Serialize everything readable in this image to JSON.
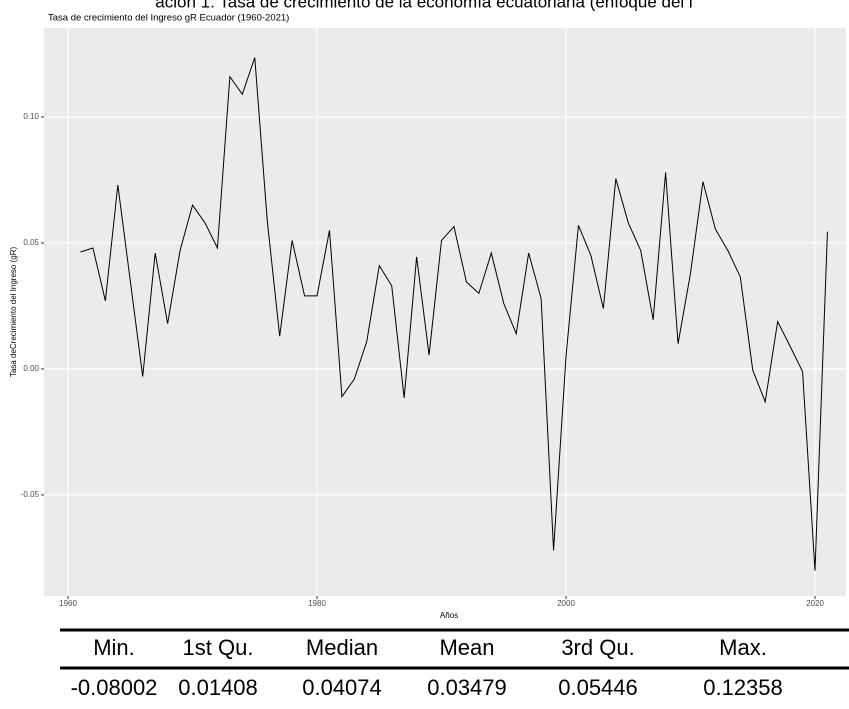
{
  "caption": "ación 1. Tasa de crecimiento de la economía ecuatoriana (enfoque del i",
  "chart_data": {
    "type": "line",
    "title": "Tasa de crecimiento del Ingreso gR Ecuador (1960-2021)",
    "x_label": "Años",
    "y_label": "Tasa deCrecimiento del Ingreso (gR)",
    "x": [
      1961,
      1962,
      1963,
      1964,
      1965,
      1966,
      1967,
      1968,
      1969,
      1970,
      1971,
      1972,
      1973,
      1974,
      1975,
      1976,
      1977,
      1978,
      1979,
      1980,
      1981,
      1982,
      1983,
      1984,
      1985,
      1986,
      1987,
      1988,
      1989,
      1990,
      1991,
      1992,
      1993,
      1994,
      1995,
      1996,
      1997,
      1998,
      1999,
      2000,
      2001,
      2002,
      2003,
      2004,
      2005,
      2006,
      2007,
      2008,
      2009,
      2010,
      2011,
      2012,
      2013,
      2014,
      2015,
      2016,
      2017,
      2018,
      2019,
      2020,
      2021
    ],
    "series": [
      {
        "color": "#000000",
        "values": [
          0.0464,
          0.048,
          0.027,
          0.073,
          0.035,
          -0.003,
          0.046,
          0.018,
          0.047,
          0.065,
          0.058,
          0.048,
          0.116,
          0.109,
          0.12358,
          0.059,
          0.013,
          0.051,
          0.029,
          0.029,
          0.055,
          -0.011,
          -0.004,
          0.011,
          0.041,
          0.033,
          -0.0115,
          0.0445,
          0.0055,
          0.051,
          0.0565,
          0.0345,
          0.03,
          0.046,
          0.026,
          0.014,
          0.046,
          0.028,
          -0.072,
          0.005,
          0.057,
          0.045,
          0.024,
          0.0755,
          0.058,
          0.047,
          0.0195,
          0.078,
          0.01,
          0.038,
          0.0743,
          0.0555,
          0.047,
          0.0365,
          -0.0005,
          -0.013,
          0.0188,
          0.009,
          -0.001,
          -0.08002,
          0.0545
        ]
      }
    ],
    "xlim": [
      1958.07,
      2022.49
    ],
    "ylim": [
      -0.0901,
      0.1353
    ],
    "xticks": [
      1960,
      1980,
      2000,
      2020
    ],
    "yticks": [
      {
        "value": -0.05,
        "label": "-0.05"
      },
      {
        "value": 0,
        "label": "0.00"
      },
      {
        "value": 0.05,
        "label": "0.05"
      },
      {
        "value": 0.1,
        "label": "0.10"
      }
    ],
    "grid": true,
    "background": "#ebebeb"
  },
  "table": {
    "header": [
      "Min.",
      "1st Qu.",
      "Median",
      "Mean",
      "3rd Qu.",
      "Max."
    ],
    "rows": [
      [
        -0.08002,
        0.01408,
        0.04074,
        0.03479,
        0.05446,
        0.12358
      ]
    ]
  }
}
